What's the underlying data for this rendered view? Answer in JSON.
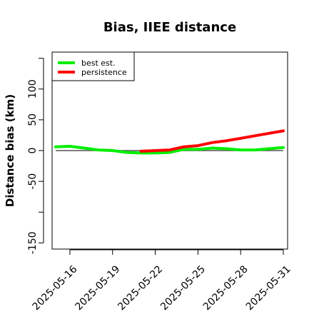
{
  "chart_data": {
    "type": "line",
    "title": "Bias, IIEE distance",
    "xlabel": "",
    "ylabel": "Distance bias (km)",
    "xlim": [
      "2025-05-15",
      "2025-05-31"
    ],
    "ylim": [
      -160,
      160
    ],
    "x_ticks": [
      "2025-05-16",
      "2025-05-19",
      "2025-05-22",
      "2025-05-25",
      "2025-05-28",
      "2025-05-31"
    ],
    "y_ticks": [
      -150,
      -50,
      0,
      50,
      100
    ],
    "reference_line": 0,
    "legend_position": "top-left",
    "grid": false,
    "series": [
      {
        "name": "best est.",
        "color": "#00ee00",
        "points": [
          [
            "2025-05-15",
            6
          ],
          [
            "2025-05-16",
            7
          ],
          [
            "2025-05-17",
            4
          ],
          [
            "2025-05-18",
            1
          ],
          [
            "2025-05-19",
            0
          ],
          [
            "2025-05-20",
            -3
          ],
          [
            "2025-05-21",
            -4
          ],
          [
            "2025-05-22",
            -4
          ],
          [
            "2025-05-23",
            -3
          ],
          [
            "2025-05-24",
            2
          ],
          [
            "2025-05-25",
            2
          ],
          [
            "2025-05-26",
            4
          ],
          [
            "2025-05-27",
            3
          ],
          [
            "2025-05-28",
            1
          ],
          [
            "2025-05-29",
            1
          ],
          [
            "2025-05-30",
            3
          ],
          [
            "2025-05-31",
            5
          ]
        ]
      },
      {
        "name": "persistence",
        "color": "#ff0000",
        "points": [
          [
            "2025-05-21",
            -1
          ],
          [
            "2025-05-22",
            0
          ],
          [
            "2025-05-23",
            1
          ],
          [
            "2025-05-24",
            6
          ],
          [
            "2025-05-25",
            8
          ],
          [
            "2025-05-26",
            13
          ],
          [
            "2025-05-27",
            16
          ],
          [
            "2025-05-28",
            20
          ],
          [
            "2025-05-29",
            24
          ],
          [
            "2025-05-30",
            28
          ],
          [
            "2025-05-31",
            32
          ]
        ]
      }
    ]
  }
}
